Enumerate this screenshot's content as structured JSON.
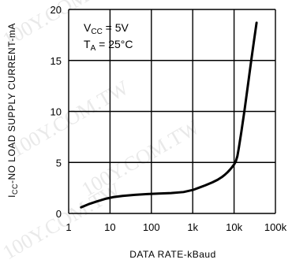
{
  "chart_data": {
    "type": "line",
    "xscale": "log",
    "xlim": [
      1,
      100000
    ],
    "ylim": [
      0,
      20
    ],
    "x_ticks": [
      1,
      10,
      100,
      1000,
      10000,
      100000
    ],
    "x_tick_labels": [
      "1",
      "10",
      "100",
      "1k",
      "10k",
      "100k"
    ],
    "y_ticks": [
      0,
      5,
      10,
      15,
      20
    ],
    "y_tick_labels": [
      "0",
      "5",
      "10",
      "15",
      "20"
    ],
    "grid": true,
    "xlabel": "DATA RATE-kBaud",
    "ylabel_main": "I",
    "ylabel_sub": "CC",
    "ylabel_rest": "-NO LOAD SUPPLY CURRENT-mA",
    "annotations": [
      {
        "main": "V",
        "sub": "CC",
        "rest": " = 5V"
      },
      {
        "main": "T",
        "sub": "A",
        "rest": " = 25°C"
      }
    ],
    "series": [
      {
        "x": [
          2,
          3,
          5,
          8,
          12,
          20,
          40,
          80,
          150,
          300,
          600,
          1000,
          2000,
          3000,
          4000,
          5000,
          6000,
          7000,
          8000,
          9000,
          10000,
          11000,
          12000,
          13000,
          15000,
          18000,
          22000,
          26000,
          30000,
          35000
        ],
        "y": [
          0.6,
          0.9,
          1.2,
          1.45,
          1.6,
          1.72,
          1.82,
          1.9,
          1.95,
          2.0,
          2.1,
          2.3,
          2.75,
          3.05,
          3.3,
          3.55,
          3.8,
          4.05,
          4.3,
          4.55,
          4.8,
          5.1,
          5.6,
          6.4,
          8.0,
          10.2,
          12.8,
          15.0,
          16.8,
          18.7
        ]
      }
    ]
  },
  "watermark": "100Y.COM.TW"
}
